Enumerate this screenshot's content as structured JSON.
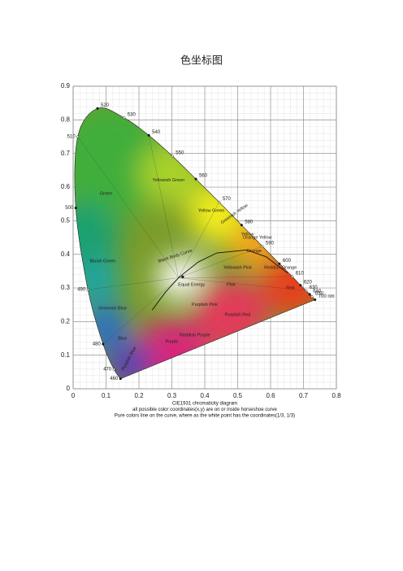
{
  "chart_data": {
    "type": "cie1931",
    "title": "色坐标图",
    "xlim": [
      0,
      0.8
    ],
    "ylim": [
      0,
      0.9
    ],
    "xticks": [
      0,
      0.1,
      0.2,
      0.3,
      0.4,
      0.5,
      0.6,
      0.7,
      0.8
    ],
    "yticks": [
      0,
      0.1,
      0.2,
      0.3,
      0.4,
      0.5,
      0.6,
      0.7,
      0.8,
      0.9
    ],
    "grid": true,
    "locus": {
      "labels": [
        "460",
        "470",
        "480",
        "490",
        "500",
        "510",
        "520",
        "530",
        "540",
        "550",
        "560",
        "570",
        "580",
        "590",
        "600",
        "610",
        "620",
        "630",
        "640",
        "650",
        "700 nm"
      ],
      "x": [
        0.144,
        0.124,
        0.091,
        0.045,
        0.008,
        0.014,
        0.074,
        0.155,
        0.23,
        0.302,
        0.373,
        0.444,
        0.512,
        0.575,
        0.627,
        0.666,
        0.691,
        0.708,
        0.719,
        0.726,
        0.735
      ],
      "y": [
        0.03,
        0.058,
        0.133,
        0.295,
        0.538,
        0.75,
        0.834,
        0.806,
        0.754,
        0.692,
        0.624,
        0.555,
        0.487,
        0.424,
        0.372,
        0.334,
        0.308,
        0.292,
        0.281,
        0.274,
        0.265
      ]
    },
    "regions": [
      "Green",
      "Yellowish Green",
      "Yellow Green",
      "Greenish Yellow",
      "Yellow",
      "Orange Yellow",
      "Orange",
      "Reddish Orange",
      "Red",
      "Yellowish Pink",
      "Pink",
      "Bluish Green",
      "Greenish Blue",
      "Blue",
      "Purplish Blue",
      "Purple",
      "Reddish Purple",
      "Purplish Pink",
      "Purplish Red",
      "Equal Energy",
      "Black Body Curve"
    ],
    "caption": [
      "CIE1931 chromaticity diagram",
      "all possible color coordinates(x,y) are on or inside horseshoe curve",
      "Pure colors line on the curve, where as the white point has the coordinates(1/3,  1/3)"
    ]
  }
}
